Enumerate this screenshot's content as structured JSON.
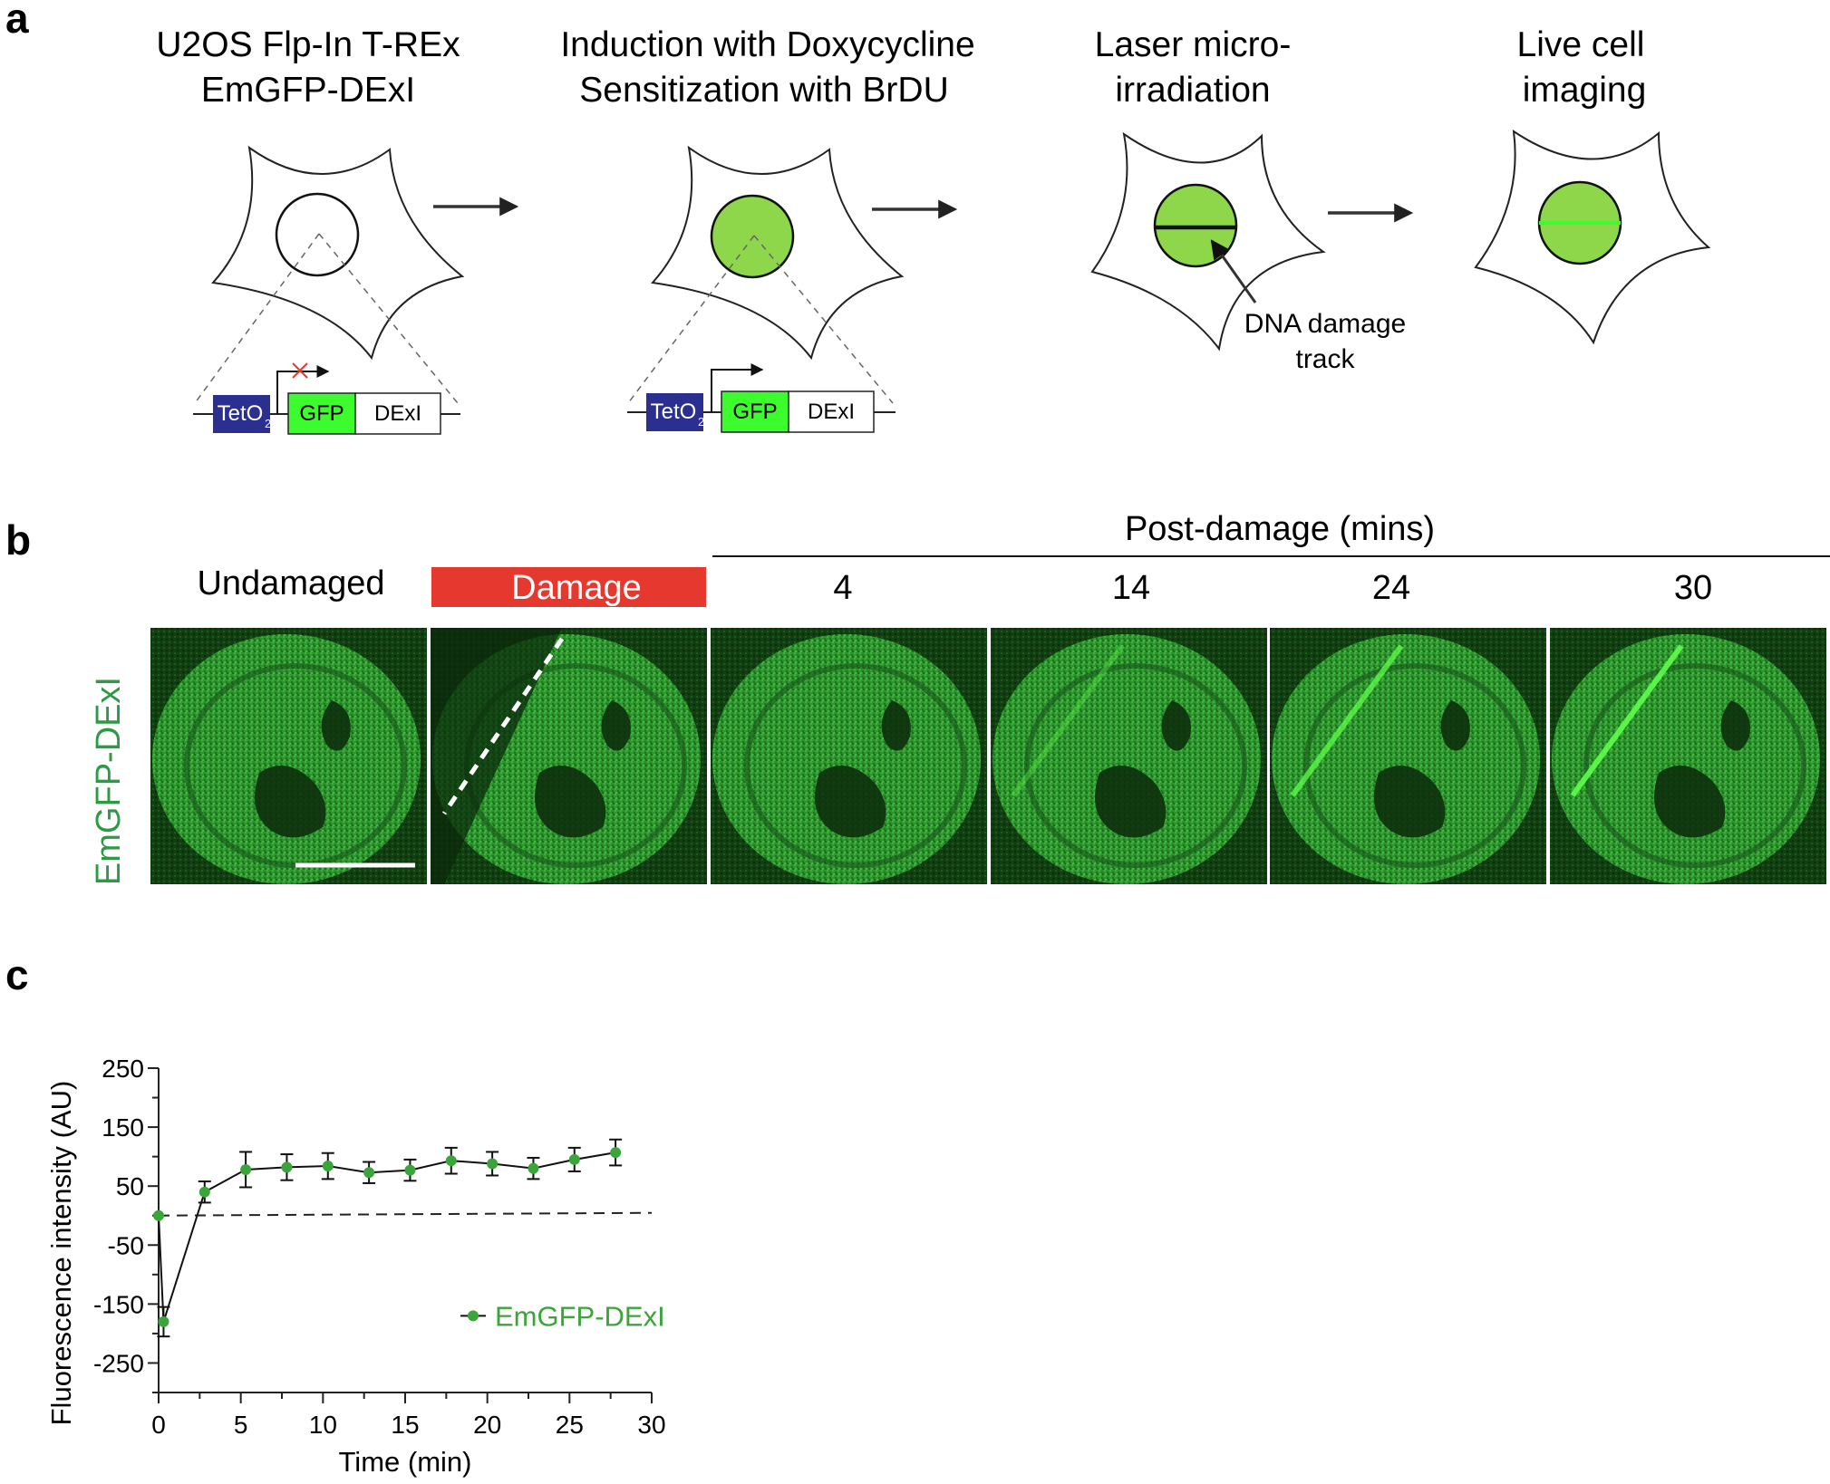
{
  "panels": {
    "a": {
      "letter": "a",
      "steps": [
        {
          "line1": "U2OS Flp-In T-REx",
          "line2": "EmGFP-DExI"
        },
        {
          "line1": "Induction with Doxycycline",
          "line2": "Sensitization with BrDU"
        },
        {
          "line1": "Laser micro-",
          "line2": "irradiation"
        },
        {
          "line1": "Live  cell",
          "line2": "imaging"
        }
      ],
      "construct": {
        "operator": "TetO",
        "operator_sub": "2",
        "gene1": "GFP",
        "gene2": "DExI"
      },
      "annotation": {
        "line1": "DNA damage",
        "line2": "track"
      }
    },
    "b": {
      "letter": "b",
      "row_label": "EmGFP-DExI",
      "group_label": "Post-damage (mins)",
      "columns": [
        "Undamaged",
        "Damage",
        "4",
        "14",
        "24",
        "30"
      ]
    },
    "c": {
      "letter": "c"
    }
  },
  "colors": {
    "gfp_green": "#3dfc2e",
    "nucleus_green": "#8ed64a",
    "tet_blue": "#2b2f8f",
    "damage_red": "#e5382e",
    "series_green": "#3aa63a",
    "micrograph_bg": "#1c7a1c"
  },
  "chart_data": {
    "type": "line",
    "xlabel": "Time (min)",
    "ylabel": "Fluorescence intensity (AU)",
    "xlim": [
      0,
      30
    ],
    "ylim": [
      -300,
      250
    ],
    "xticks": [
      0,
      5,
      10,
      15,
      20,
      25,
      30
    ],
    "yticks": [
      250,
      150,
      50,
      -50,
      -150,
      -250
    ],
    "reference_line": 0,
    "series": [
      {
        "name": "EmGFP-DExI",
        "x": [
          0,
          0.3,
          2.8,
          5.3,
          7.8,
          10.3,
          12.8,
          15.3,
          17.8,
          20.3,
          22.8,
          25.3,
          27.8
        ],
        "y": [
          0,
          -180,
          40,
          78,
          82,
          84,
          73,
          77,
          93,
          88,
          80,
          95,
          107
        ],
        "error": [
          0,
          25,
          18,
          30,
          22,
          22,
          18,
          18,
          22,
          20,
          18,
          20,
          22
        ]
      }
    ],
    "legend_position": "bottom-right"
  }
}
